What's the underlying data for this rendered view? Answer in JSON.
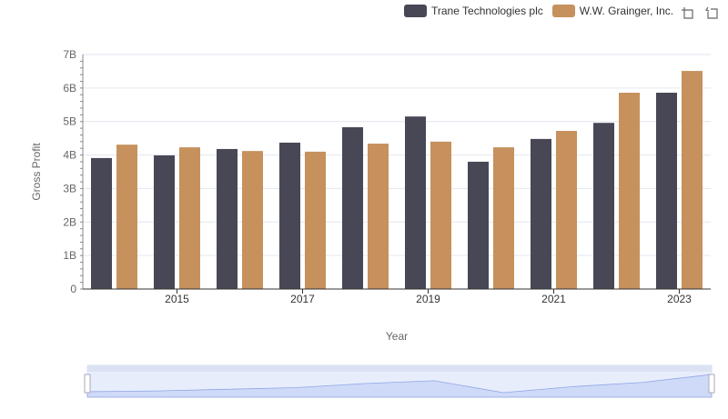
{
  "legend": {
    "series1": "Trane Technologies plc",
    "series2": "W.W. Grainger, Inc."
  },
  "colors": {
    "series1": "#474755",
    "series2": "#c6915d"
  },
  "chart_data": {
    "type": "bar",
    "title": "",
    "xlabel": "Year",
    "ylabel": "Gross Profit",
    "categories": [
      "2014",
      "2015",
      "2016",
      "2017",
      "2018",
      "2019",
      "2020",
      "2021",
      "2022",
      "2023"
    ],
    "x_tick_labels": [
      "2015",
      "2017",
      "2019",
      "2021",
      "2023"
    ],
    "y_tick_labels": [
      "0",
      "1B",
      "2B",
      "3B",
      "4B",
      "5B",
      "6B",
      "7B"
    ],
    "ylim": [
      0,
      7
    ],
    "series": [
      {
        "name": "Trane Technologies plc",
        "values": [
          3.91,
          3.99,
          4.18,
          4.37,
          4.83,
          5.15,
          3.8,
          4.48,
          4.96,
          5.86
        ]
      },
      {
        "name": "W.W. Grainger, Inc.",
        "values": [
          4.31,
          4.23,
          4.12,
          4.1,
          4.34,
          4.4,
          4.23,
          4.72,
          5.86,
          6.51
        ]
      }
    ],
    "legend_position": "top-right"
  }
}
